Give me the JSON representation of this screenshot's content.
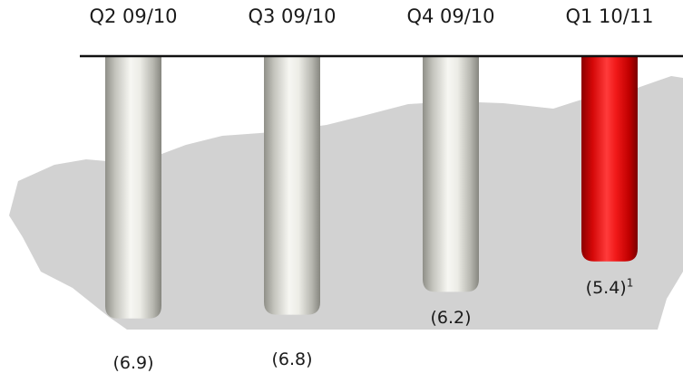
{
  "chart_data": {
    "type": "bar",
    "orientation": "vertical-hanging",
    "categories": [
      "Q2 09/10",
      "Q3 09/10",
      "Q4 09/10",
      "Q1 10/11"
    ],
    "values": [
      -6.9,
      -6.8,
      -6.2,
      -5.4
    ],
    "value_labels": [
      "(6.9)",
      "(6.8)",
      "(6.2)",
      "(5.4)"
    ],
    "footnote_marks": [
      "",
      "",
      "",
      "1"
    ],
    "bar_colors": [
      "#d9d9d4",
      "#d9d9d4",
      "#d9d9d4",
      "#e01010"
    ],
    "highlight_index": 3,
    "title": "",
    "xlabel": "",
    "ylabel": "",
    "ylim": [
      -7.0,
      0
    ],
    "grid": false,
    "legend": "none",
    "colors": {
      "baseline": "#111111",
      "background_map": "#d2d2d2",
      "bar_neutral": "#d9d9d4",
      "bar_highlight": "#e01010"
    }
  }
}
